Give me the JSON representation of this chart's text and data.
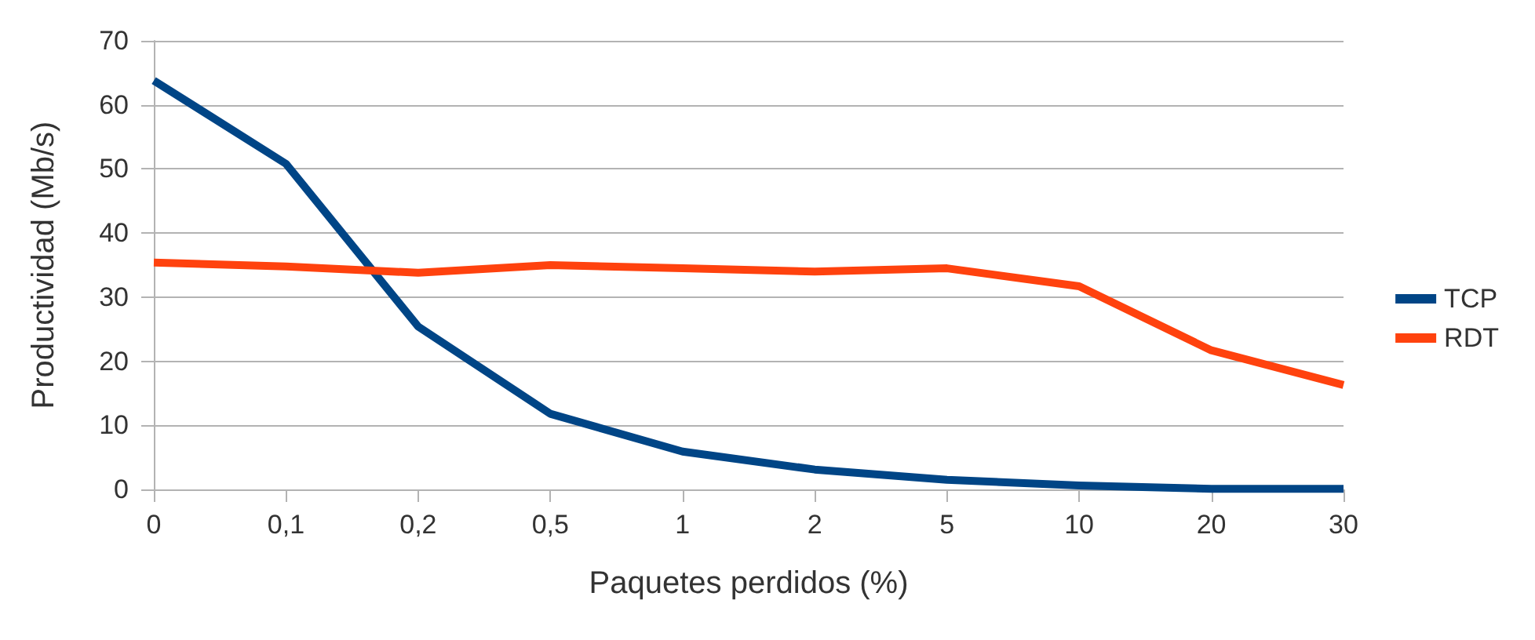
{
  "chart_data": {
    "type": "line",
    "xlabel": "Paquetes perdidos (%)",
    "ylabel": "Productividad (Mb/s)",
    "categories": [
      "0",
      "0,1",
      "0,2",
      "0,5",
      "1",
      "2",
      "5",
      "10",
      "20",
      "30"
    ],
    "series": [
      {
        "name": "TCP",
        "color": "#004586",
        "values": [
          63.8,
          50.8,
          25.4,
          11.8,
          5.9,
          3.1,
          1.5,
          0.6,
          0.1,
          0.1
        ]
      },
      {
        "name": "RDT",
        "color": "#ff420e",
        "values": [
          35.4,
          34.8,
          33.8,
          35.0,
          34.5,
          34.0,
          34.5,
          31.7,
          21.7,
          16.3
        ]
      }
    ],
    "ylim": [
      0,
      70
    ],
    "yticks": [
      0,
      10,
      20,
      30,
      40,
      50,
      60,
      70
    ],
    "grid": "y",
    "legend": "right",
    "marker": "none"
  }
}
